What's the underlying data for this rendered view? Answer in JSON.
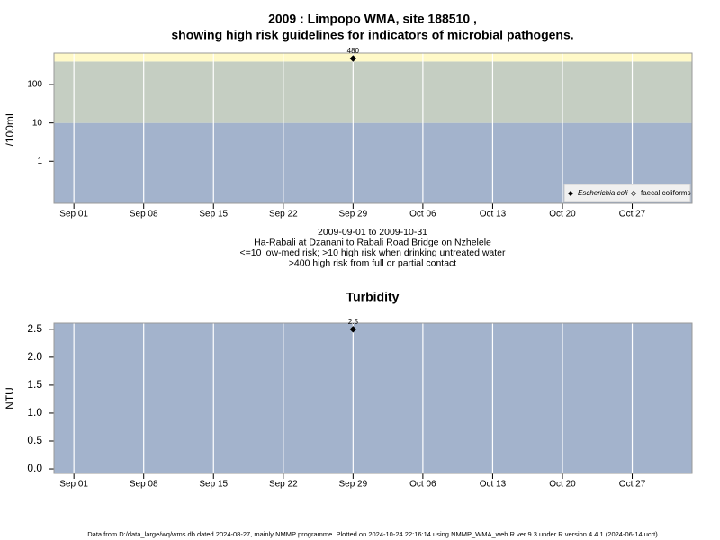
{
  "chart_data": [
    {
      "type": "scatter",
      "title": "2009 : Limpopo WMA, site 188510 ,",
      "subtitle": "showing high risk guidelines for indicators of microbial pathogens.",
      "y_label": "/100mL",
      "log_y": true,
      "grid": "x",
      "x": [
        "2009-09-29"
      ],
      "series": [
        {
          "name": "Escherichia coli",
          "color": "#000000",
          "values": [
            480
          ]
        },
        {
          "name": "faecal coliforms",
          "color": "#ffffff",
          "values": [
            null
          ]
        }
      ],
      "xlim": [
        "2009-08-30",
        "2009-11-02"
      ],
      "xticks": [
        {
          "value": "2009-09-01",
          "label": "Sep 01"
        },
        {
          "value": "2009-09-08",
          "label": "Sep 08"
        },
        {
          "value": "2009-09-15",
          "label": "Sep 15"
        },
        {
          "value": "2009-09-22",
          "label": "Sep 22"
        },
        {
          "value": "2009-09-29",
          "label": "Sep 29"
        },
        {
          "value": "2009-10-06",
          "label": "Oct 06"
        },
        {
          "value": "2009-10-13",
          "label": "Oct 13"
        },
        {
          "value": "2009-10-20",
          "label": "Oct 20"
        },
        {
          "value": "2009-10-27",
          "label": "Oct 27"
        }
      ],
      "ylim": [
        0.08,
        665
      ],
      "yticks": [
        1,
        10,
        100
      ],
      "thresholds": [
        10,
        400
      ],
      "band_colors": [
        "#a3b3cc",
        "#c5cec2",
        "#fff9c8"
      ],
      "legend": "bottom-right",
      "notes": [
        "2009-09-01 to 2009-10-31",
        "Ha-Rabali at Dzanani to Rabali Road Bridge on Nzhelele",
        "<=10 low-med risk; >10 high risk when drinking untreated water",
        ">400 high risk from full or partial contact"
      ]
    },
    {
      "type": "scatter",
      "title": "Turbidity",
      "y_label": "NTU",
      "log_y": false,
      "grid": "x",
      "x": [
        "2009-09-29"
      ],
      "series": [
        {
          "name": "Turbidity",
          "color": "#000000",
          "values": [
            2.5
          ]
        }
      ],
      "xlim": [
        "2009-08-30",
        "2009-11-02"
      ],
      "xticks": [
        {
          "value": "2009-09-01",
          "label": "Sep 01"
        },
        {
          "value": "2009-09-08",
          "label": "Sep 08"
        },
        {
          "value": "2009-09-15",
          "label": "Sep 15"
        },
        {
          "value": "2009-09-22",
          "label": "Sep 22"
        },
        {
          "value": "2009-09-29",
          "label": "Sep 29"
        },
        {
          "value": "2009-10-06",
          "label": "Oct 06"
        },
        {
          "value": "2009-10-13",
          "label": "Oct 13"
        },
        {
          "value": "2009-10-20",
          "label": "Oct 20"
        },
        {
          "value": "2009-10-27",
          "label": "Oct 27"
        }
      ],
      "ylim": [
        -0.08,
        2.61
      ],
      "yticks": [
        {
          "value": 0,
          "label": "0.0"
        },
        0.5,
        {
          "value": 1,
          "label": "1.0"
        },
        1.5,
        {
          "value": 2,
          "label": "2.0"
        },
        2.5
      ],
      "thresholds": [],
      "band_colors": [
        "#a3b3cc"
      ]
    }
  ],
  "footer": "Data from D:/data_large/wq/wms.db dated 2024-08-27, mainly NMMP programme. Plotted on 2024-10-24 22:16:14 using NMMP_WMA_web.R ver 9.3 under R version 4.4.1 (2024-06-14 ucrt)"
}
